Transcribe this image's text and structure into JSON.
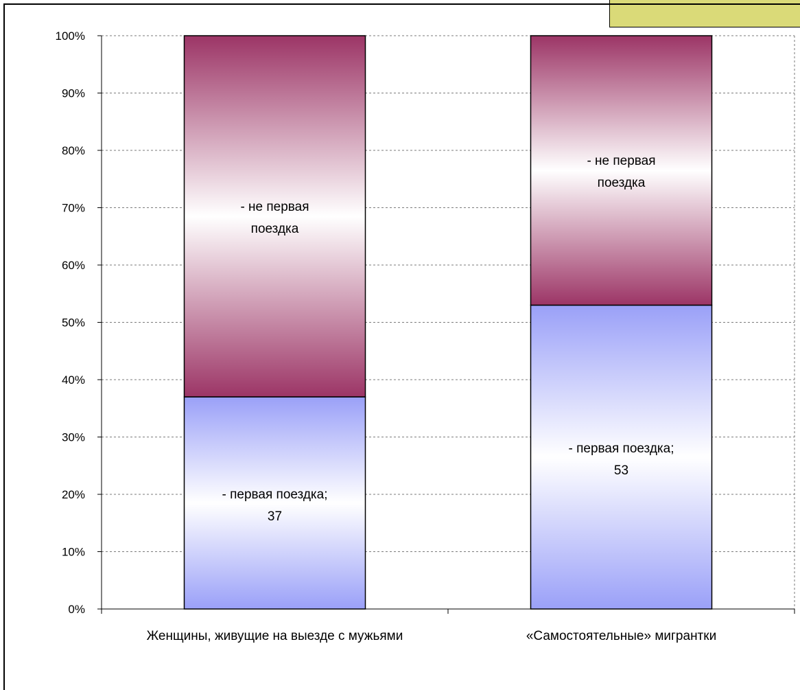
{
  "chart_data": {
    "type": "bar",
    "stacked": "percent",
    "categories": [
      "Женщины, живущие на выезде с мужьями",
      "«Самостоятельные» мигрантки"
    ],
    "series": [
      {
        "name": "первая поездка",
        "values": [
          37,
          53
        ],
        "color": "#9aa0f8"
      },
      {
        "name": "не первая поездка",
        "values": [
          63,
          47
        ],
        "color": "#9c3566"
      }
    ],
    "data_labels": [
      [
        "- первая поездка;",
        "37"
      ],
      [
        "- первая поездка;",
        "53"
      ],
      [
        "- не первая",
        "поездка"
      ],
      [
        "- не первая",
        "поездка"
      ]
    ],
    "ylim": [
      0,
      100
    ],
    "yticks": [
      "0%",
      "10%",
      "20%",
      "30%",
      "40%",
      "50%",
      "60%",
      "70%",
      "80%",
      "90%",
      "100%"
    ],
    "grid": true,
    "legend": "none",
    "title": "",
    "xlabel": "",
    "ylabel": ""
  }
}
